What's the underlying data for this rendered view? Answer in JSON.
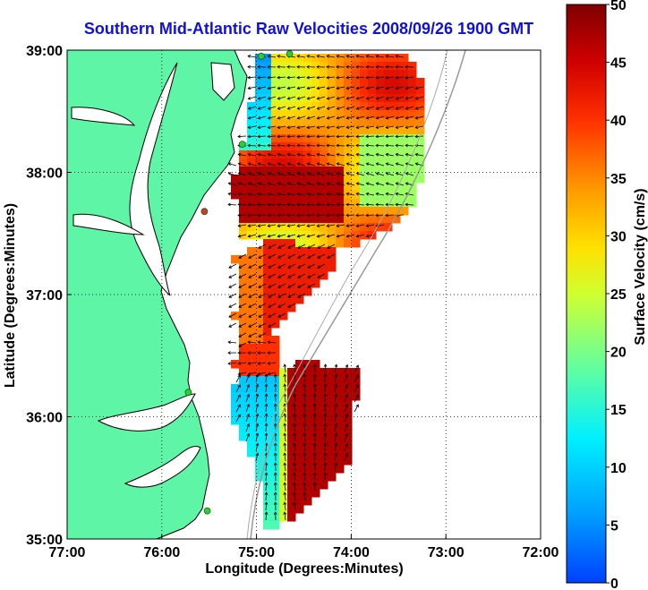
{
  "map": {
    "title": "Southern Mid-Atlantic Raw Velocities 2008/09/26 1900 GMT",
    "x_label": "Longitude (Degrees:Minutes)",
    "y_label": "Latitude (Degrees:Minutes)",
    "x_ticks": [
      "77:00",
      "76:00",
      "75:00",
      "74:00",
      "73:00",
      "72:00"
    ],
    "y_ticks": [
      "39:00",
      "38:00",
      "37:00",
      "36:00",
      "35:00"
    ],
    "lon_range": [
      -77,
      -72
    ],
    "lat_range": [
      35,
      39
    ],
    "land_color": "#5ef5a6",
    "ocean_color": "#ffffff",
    "grid": "dotted"
  },
  "colorbar": {
    "label": "Surface Velocity (cm/s)",
    "ticks": [
      "0",
      "5",
      "10",
      "15",
      "20",
      "25",
      "30",
      "35",
      "40",
      "45",
      "50"
    ],
    "min": 0,
    "max": 50,
    "colormap": "jet"
  },
  "stations": [
    {
      "lon": -74.65,
      "lat": 38.97,
      "color": "#33cc33"
    },
    {
      "lon": -74.95,
      "lat": 38.95,
      "color": "#33cc33"
    },
    {
      "lon": -75.15,
      "lat": 38.23,
      "color": "#33cc33"
    },
    {
      "lon": -75.55,
      "lat": 37.68,
      "color": "#dd3333"
    },
    {
      "lon": -75.72,
      "lat": 36.2,
      "color": "#33cc33"
    },
    {
      "lon": -75.52,
      "lat": 35.23,
      "color": "#33cc33"
    }
  ]
}
